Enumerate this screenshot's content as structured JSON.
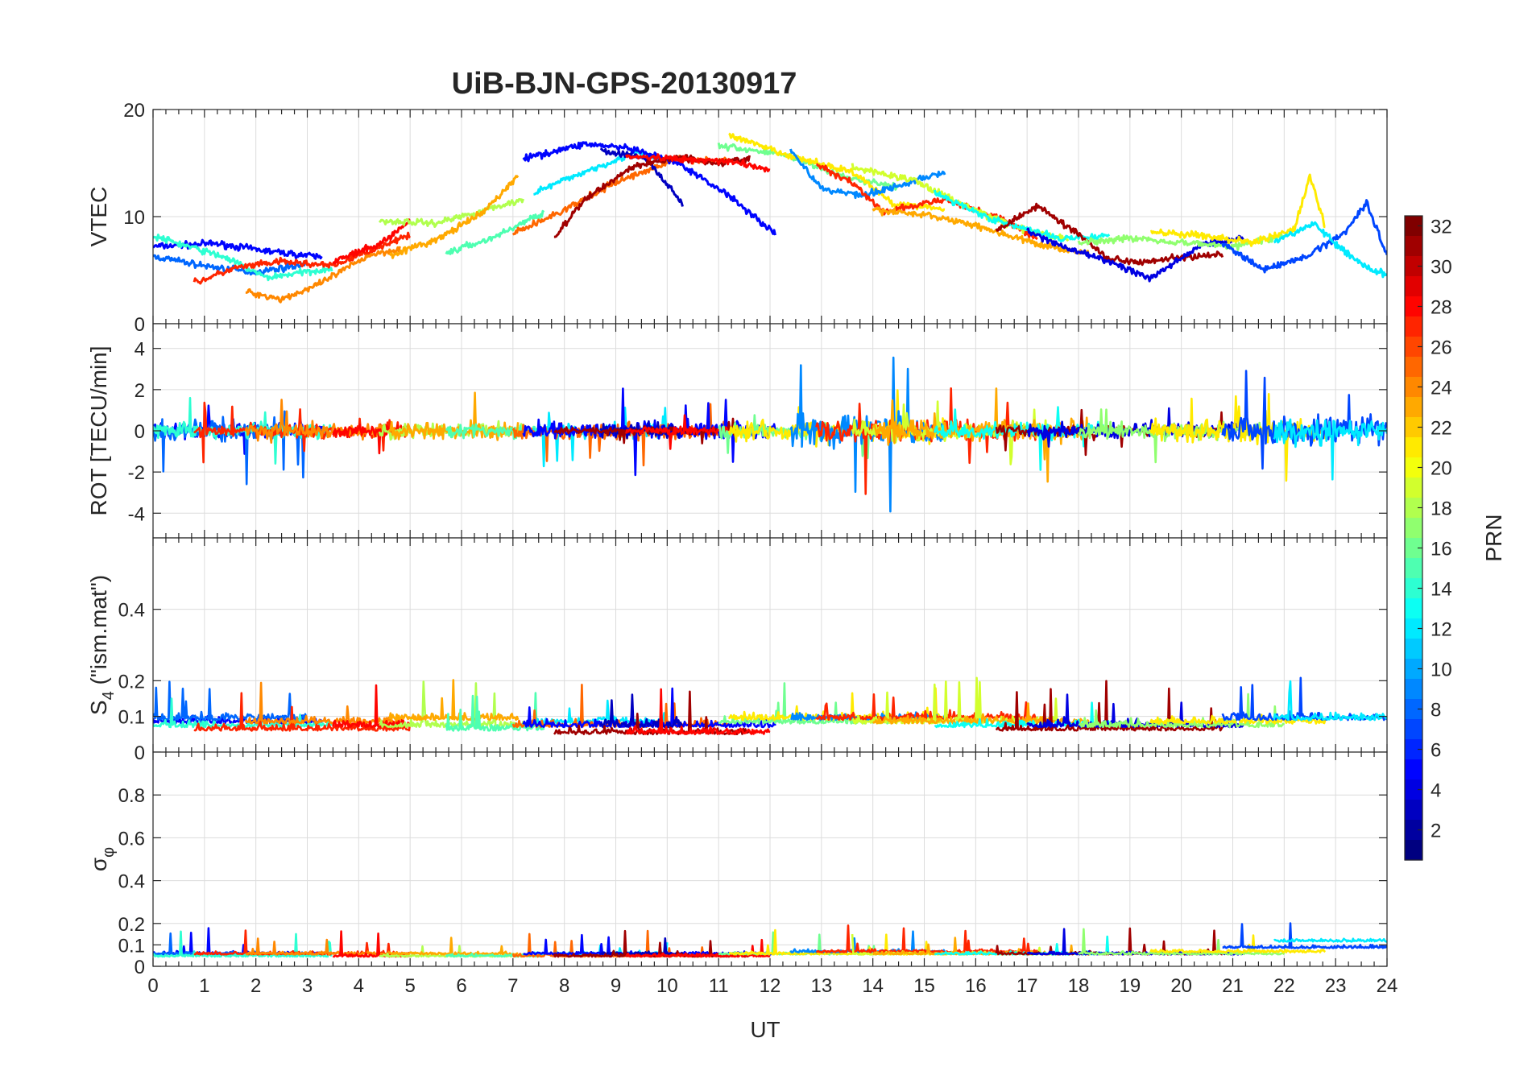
{
  "chart_data": {
    "type": "line",
    "title": "UiB-BJN-GPS-20130917",
    "xlabel": "UT",
    "xlim": [
      0,
      24
    ],
    "xticks": [
      0,
      1,
      2,
      3,
      4,
      5,
      6,
      7,
      8,
      9,
      10,
      11,
      12,
      13,
      14,
      15,
      16,
      17,
      18,
      19,
      20,
      21,
      22,
      23,
      24
    ],
    "grid": true,
    "colorbar": {
      "label": "PRN",
      "range": [
        1,
        32
      ],
      "ticks": [
        2,
        4,
        6,
        8,
        10,
        12,
        14,
        16,
        18,
        20,
        22,
        24,
        26,
        28,
        30,
        32
      ],
      "colormap": "jet"
    },
    "panels": [
      {
        "ylabel": "VTEC",
        "ylim": [
          0,
          20
        ],
        "yticks": [
          0,
          10,
          20
        ]
      },
      {
        "ylabel": "ROT [TECU/min]",
        "ylim": [
          -5.2,
          5.2
        ],
        "yticks": [
          -4,
          -2,
          0,
          2,
          4
        ]
      },
      {
        "ylabel_main": "S",
        "ylabel_sub": "4",
        "ylabel_rest": " (\"ism.mat\")",
        "ylim": [
          0,
          0.6
        ],
        "yticks": [
          0,
          0.1,
          0.2,
          0.4
        ]
      },
      {
        "ylabel_main": "σ",
        "ylabel_sub": "φ",
        "ylim": [
          0,
          1
        ],
        "yticks": [
          0,
          0.1,
          0.2,
          0.4,
          0.6,
          0.8
        ]
      }
    ],
    "series": [
      {
        "prn": 5,
        "vtec": [
          [
            0,
            7.2
          ],
          [
            1.2,
            7.5
          ],
          [
            2.2,
            6.8
          ],
          [
            3.3,
            6.2
          ]
        ],
        "rot": 0.6,
        "s4": 0.09,
        "sig": 0.06
      },
      {
        "prn": 8,
        "vtec": [
          [
            0,
            6.3
          ],
          [
            1.0,
            5.4
          ],
          [
            2.0,
            4.8
          ],
          [
            3.0,
            5.6
          ]
        ],
        "rot": 0.8,
        "s4": 0.1,
        "sig": 0.06
      },
      {
        "prn": 14,
        "vtec": [
          [
            0,
            8.2
          ],
          [
            1.4,
            6.2
          ],
          [
            2.2,
            4.3
          ],
          [
            3.5,
            5.2
          ]
        ],
        "rot": 0.6,
        "s4": 0.08,
        "sig": 0.05
      },
      {
        "prn": 27,
        "vtec": [
          [
            0.8,
            3.8
          ],
          [
            1.6,
            5.2
          ],
          [
            2.5,
            5.8
          ],
          [
            3.5,
            5.4
          ],
          [
            4.6,
            7.6
          ],
          [
            5.0,
            8.2
          ]
        ],
        "rot": 0.5,
        "s4": 0.07,
        "sig": 0.06
      },
      {
        "prn": 24,
        "vtec": [
          [
            1.8,
            3.0
          ],
          [
            2.5,
            2.3
          ],
          [
            3.2,
            3.6
          ],
          [
            4.2,
            6.4
          ],
          [
            4.8,
            7.0
          ]
        ],
        "rot": 0.6,
        "s4": 0.09,
        "sig": 0.06
      },
      {
        "prn": 28,
        "vtec": [
          [
            3.5,
            5.8
          ],
          [
            4.4,
            7.4
          ],
          [
            5.0,
            9.6
          ]
        ],
        "rot": 0.5,
        "s4": 0.08,
        "sig": 0.05
      },
      {
        "prn": 18,
        "vtec": [
          [
            4.4,
            9.6
          ],
          [
            5.5,
            9.4
          ],
          [
            6.6,
            10.8
          ],
          [
            7.2,
            11.6
          ]
        ],
        "rot": 0.6,
        "s4": 0.08,
        "sig": 0.05
      },
      {
        "prn": 23,
        "vtec": [
          [
            4.6,
            6.4
          ],
          [
            5.5,
            7.8
          ],
          [
            6.4,
            10.3
          ],
          [
            7.1,
            13.8
          ]
        ],
        "rot": 0.7,
        "s4": 0.1,
        "sig": 0.06
      },
      {
        "prn": 15,
        "vtec": [
          [
            5.7,
            6.6
          ],
          [
            6.6,
            8.0
          ],
          [
            7.6,
            10.4
          ]
        ],
        "rot": 0.5,
        "s4": 0.07,
        "sig": 0.05
      },
      {
        "prn": 12,
        "vtec": [
          [
            7.4,
            12.2
          ],
          [
            8.4,
            14.2
          ],
          [
            9.4,
            16.0
          ],
          [
            10.0,
            15.2
          ]
        ],
        "rot": 0.6,
        "s4": 0.09,
        "sig": 0.06
      },
      {
        "prn": 25,
        "vtec": [
          [
            7.0,
            8.4
          ],
          [
            8.0,
            10.6
          ],
          [
            9.0,
            13.2
          ],
          [
            10.2,
            15.4
          ],
          [
            11.2,
            15.2
          ]
        ],
        "rot": 0.6,
        "s4": 0.08,
        "sig": 0.05
      },
      {
        "prn": 5,
        "vtec": [
          [
            7.2,
            15.4
          ],
          [
            8.4,
            16.8
          ],
          [
            9.2,
            16.4
          ],
          [
            10.2,
            15.0
          ],
          [
            11.2,
            12.0
          ],
          [
            12.1,
            8.4
          ]
        ],
        "rot": 0.7,
        "s4": 0.08,
        "sig": 0.06
      },
      {
        "prn": 3,
        "vtec": [
          [
            8.7,
            16.2
          ],
          [
            9.6,
            15.4
          ],
          [
            10.3,
            11.2
          ]
        ],
        "rot": 0.6,
        "s4": 0.08,
        "sig": 0.06
      },
      {
        "prn": 31,
        "vtec": [
          [
            7.8,
            8.0
          ],
          [
            8.4,
            11.6
          ],
          [
            9.3,
            14.6
          ],
          [
            10.2,
            15.6
          ],
          [
            11.0,
            15.0
          ],
          [
            11.6,
            15.4
          ]
        ],
        "rot": 0.3,
        "s4": 0.06,
        "sig": 0.05
      },
      {
        "prn": 28,
        "vtec": [
          [
            9.2,
            15.6
          ],
          [
            10.2,
            15.4
          ],
          [
            11.2,
            15.2
          ],
          [
            12.0,
            14.4
          ]
        ],
        "rot": 0.3,
        "s4": 0.06,
        "sig": 0.05
      },
      {
        "prn": 16,
        "vtec": [
          [
            11.0,
            16.6
          ],
          [
            12.3,
            15.8
          ],
          [
            13.5,
            13.6
          ],
          [
            14.5,
            12.8
          ]
        ],
        "rot": 0.6,
        "s4": 0.09,
        "sig": 0.06
      },
      {
        "prn": 21,
        "vtec": [
          [
            11.2,
            17.6
          ],
          [
            12.4,
            15.6
          ],
          [
            13.6,
            14.2
          ],
          [
            14.4,
            11.2
          ],
          [
            15.4,
            10.8
          ]
        ],
        "rot": 0.9,
        "s4": 0.1,
        "sig": 0.06
      },
      {
        "prn": 9,
        "vtec": [
          [
            12.4,
            16.2
          ],
          [
            13.0,
            12.6
          ],
          [
            13.8,
            12.0
          ],
          [
            14.6,
            13.0
          ],
          [
            15.4,
            14.2
          ]
        ],
        "rot": 1.3,
        "s4": 0.1,
        "sig": 0.07
      },
      {
        "prn": 27,
        "vtec": [
          [
            12.9,
            14.8
          ],
          [
            13.6,
            13.2
          ],
          [
            14.2,
            10.4
          ],
          [
            15.4,
            11.6
          ],
          [
            16.4,
            10.0
          ],
          [
            17.2,
            8.0
          ]
        ],
        "rot": 0.9,
        "s4": 0.1,
        "sig": 0.07
      },
      {
        "prn": 19,
        "vtec": [
          [
            13.6,
            14.6
          ],
          [
            14.8,
            13.4
          ],
          [
            15.8,
            11.0
          ],
          [
            16.8,
            9.0
          ],
          [
            17.8,
            7.8
          ]
        ],
        "rot": 0.7,
        "s4": 0.09,
        "sig": 0.06
      },
      {
        "prn": 23,
        "vtec": [
          [
            14.0,
            10.6
          ],
          [
            15.0,
            10.2
          ],
          [
            16.0,
            9.2
          ],
          [
            17.2,
            7.4
          ],
          [
            18.2,
            6.6
          ]
        ],
        "rot": 0.8,
        "s4": 0.09,
        "sig": 0.06
      },
      {
        "prn": 13,
        "vtec": [
          [
            15.2,
            12.2
          ],
          [
            16.4,
            9.6
          ],
          [
            17.6,
            8.0
          ],
          [
            18.6,
            8.2
          ]
        ],
        "rot": 0.6,
        "s4": 0.08,
        "sig": 0.06
      },
      {
        "prn": 31,
        "vtec": [
          [
            16.4,
            8.8
          ],
          [
            17.2,
            11.0
          ],
          [
            18.0,
            8.4
          ],
          [
            18.6,
            6.0
          ],
          [
            19.2,
            5.8
          ],
          [
            20.0,
            6.2
          ],
          [
            20.8,
            6.4
          ]
        ],
        "rot": 0.4,
        "s4": 0.07,
        "sig": 0.06
      },
      {
        "prn": 4,
        "vtec": [
          [
            17.0,
            8.6
          ],
          [
            17.8,
            7.0
          ],
          [
            18.6,
            5.8
          ],
          [
            19.4,
            4.2
          ],
          [
            20.4,
            7.4
          ],
          [
            21.2,
            8.0
          ]
        ],
        "rot": 0.6,
        "s4": 0.08,
        "sig": 0.06
      },
      {
        "prn": 17,
        "vtec": [
          [
            18.0,
            7.6
          ],
          [
            19.0,
            8.0
          ],
          [
            20.0,
            7.6
          ],
          [
            21.0,
            7.2
          ],
          [
            22.0,
            8.2
          ]
        ],
        "rot": 0.6,
        "s4": 0.08,
        "sig": 0.06
      },
      {
        "prn": 21,
        "vtec": [
          [
            19.4,
            8.6
          ],
          [
            20.4,
            8.2
          ],
          [
            21.4,
            7.6
          ],
          [
            22.2,
            8.8
          ],
          [
            22.5,
            13.8
          ],
          [
            22.8,
            9.0
          ]
        ],
        "rot": 0.8,
        "s4": 0.09,
        "sig": 0.07
      },
      {
        "prn": 7,
        "vtec": [
          [
            20.8,
            7.6
          ],
          [
            21.6,
            5.0
          ],
          [
            22.4,
            6.2
          ],
          [
            23.2,
            8.6
          ],
          [
            23.6,
            11.4
          ],
          [
            24.0,
            6.4
          ]
        ],
        "rot": 1.2,
        "s4": 0.1,
        "sig": 0.09
      },
      {
        "prn": 12,
        "vtec": [
          [
            21.8,
            7.6
          ],
          [
            22.6,
            9.4
          ],
          [
            23.0,
            7.4
          ],
          [
            23.6,
            5.2
          ],
          [
            24.0,
            4.6
          ]
        ],
        "rot": 1.0,
        "s4": 0.1,
        "sig": 0.12
      }
    ]
  }
}
